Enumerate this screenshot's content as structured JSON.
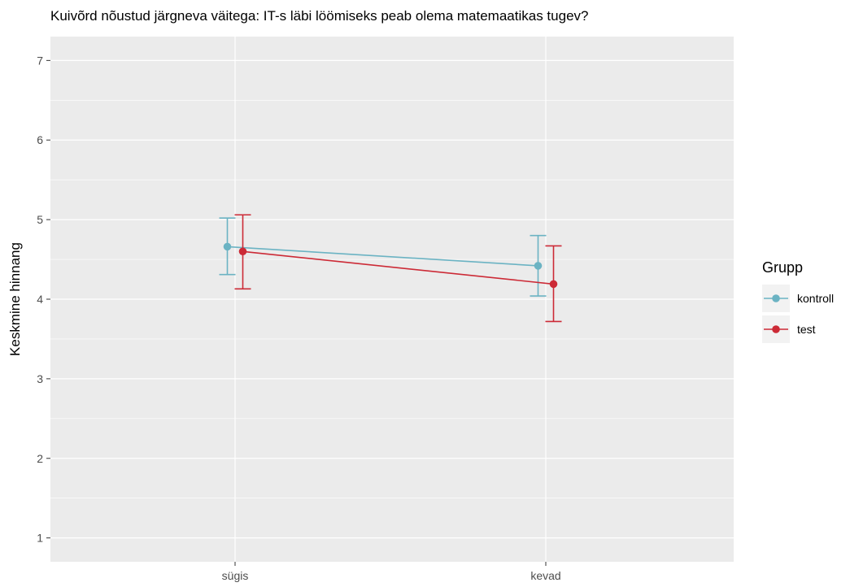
{
  "chart_data": {
    "type": "line",
    "title": "Kuivõrd nõustud järgneva väitega: IT-s läbi löömiseks peab olema matemaatikas tugev?",
    "xlabel": "",
    "ylabel": "Keskmine hinnang",
    "categories": [
      "sügis",
      "kevad"
    ],
    "ylim": [
      0.7,
      7.3
    ],
    "yticks": [
      1,
      2,
      3,
      4,
      5,
      6,
      7
    ],
    "grid": true,
    "legend": {
      "title": "Grupp",
      "position": "right"
    },
    "series": [
      {
        "name": "kontroll",
        "color": "#6BB3C3",
        "values": [
          4.66,
          4.42
        ],
        "lower": [
          4.31,
          4.04
        ],
        "upper": [
          5.02,
          4.8
        ]
      },
      {
        "name": "test",
        "color": "#CC2A36",
        "values": [
          4.6,
          4.19
        ],
        "lower": [
          4.13,
          3.72
        ],
        "upper": [
          5.06,
          4.67
        ]
      }
    ]
  }
}
